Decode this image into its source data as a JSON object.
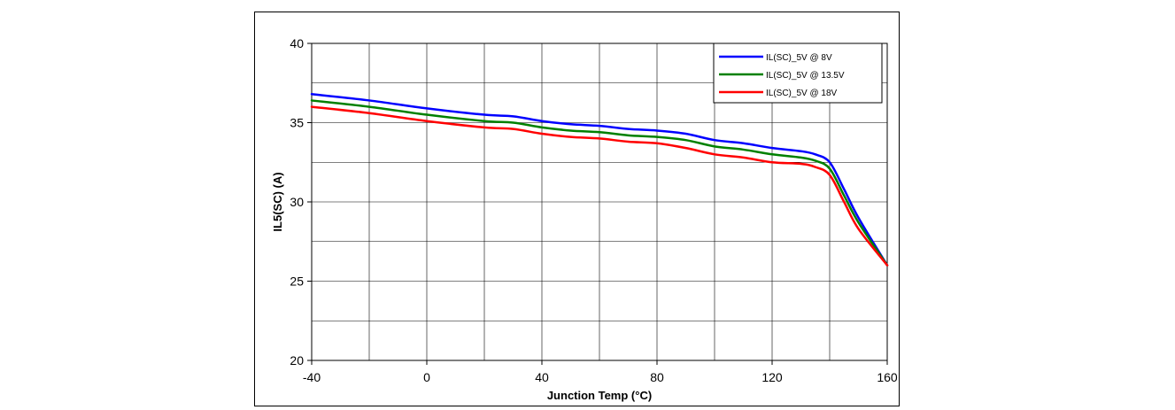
{
  "chart_data": {
    "type": "line",
    "title": "",
    "xlabel": "Junction Temp (°C)",
    "ylabel": "IL5(SC)  (A)",
    "xlim": [
      -40,
      160
    ],
    "ylim": [
      20,
      40
    ],
    "x_ticks": [
      -40,
      0,
      40,
      80,
      120,
      160
    ],
    "y_ticks": [
      20,
      25,
      30,
      35,
      40
    ],
    "x_minor_step": 20,
    "y_minor_step": 2.5,
    "grid": true,
    "legend_position": "top-right",
    "series": [
      {
        "name": "IL(SC)_5V @ 8V",
        "color": "#0000ff",
        "x": [
          -40,
          -20,
          0,
          20,
          30,
          40,
          50,
          60,
          70,
          80,
          90,
          100,
          110,
          120,
          130,
          135,
          140,
          145,
          150,
          160
        ],
        "y": [
          36.8,
          36.4,
          35.9,
          35.5,
          35.4,
          35.1,
          34.9,
          34.8,
          34.6,
          34.5,
          34.3,
          33.9,
          33.7,
          33.4,
          33.2,
          33.0,
          32.5,
          30.8,
          29.0,
          26.0
        ]
      },
      {
        "name": "IL(SC)_5V @ 13.5V",
        "color": "#008000",
        "x": [
          -40,
          -20,
          0,
          20,
          30,
          40,
          50,
          60,
          70,
          80,
          90,
          100,
          110,
          120,
          130,
          135,
          140,
          145,
          150,
          160
        ],
        "y": [
          36.4,
          36.0,
          35.5,
          35.1,
          35.0,
          34.7,
          34.5,
          34.4,
          34.2,
          34.1,
          33.9,
          33.5,
          33.3,
          33.0,
          32.8,
          32.6,
          32.1,
          30.4,
          28.7,
          26.0
        ]
      },
      {
        "name": "IL(SC)_5V @ 18V",
        "color": "#ff0000",
        "x": [
          -40,
          -20,
          0,
          20,
          30,
          40,
          50,
          60,
          70,
          80,
          90,
          100,
          110,
          120,
          130,
          135,
          140,
          145,
          150,
          160
        ],
        "y": [
          36.0,
          35.6,
          35.1,
          34.7,
          34.6,
          34.3,
          34.1,
          34.0,
          33.8,
          33.7,
          33.4,
          33.0,
          32.8,
          32.5,
          32.4,
          32.2,
          31.7,
          30.0,
          28.3,
          26.0
        ]
      }
    ]
  }
}
